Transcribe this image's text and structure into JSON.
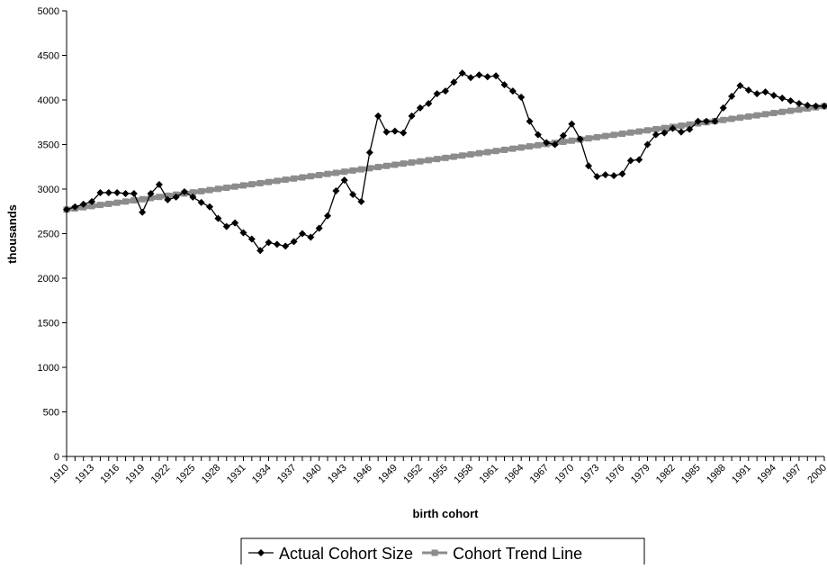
{
  "chart_data": {
    "type": "line",
    "x_label": "birth cohort",
    "y_label": "thousands",
    "categories": [
      "1910",
      null,
      null,
      "1913",
      null,
      null,
      "1916",
      null,
      null,
      "1919",
      null,
      null,
      "1922",
      null,
      null,
      "1925",
      null,
      null,
      "1928",
      null,
      null,
      "1931",
      null,
      null,
      "1934",
      null,
      null,
      "1937",
      null,
      null,
      "1940",
      null,
      null,
      "1943",
      null,
      null,
      "1946",
      null,
      null,
      "1949",
      null,
      null,
      "1952",
      null,
      null,
      "1955",
      null,
      null,
      "1958",
      null,
      null,
      "1961",
      null,
      null,
      "1964",
      null,
      null,
      "1967",
      null,
      null,
      "1970",
      null,
      null,
      "1973",
      null,
      null,
      "1976",
      null,
      null,
      "1979",
      null,
      null,
      "1982",
      null,
      null,
      "1985",
      null,
      null,
      "1988",
      null,
      null,
      "1991",
      null,
      null,
      "1994",
      null,
      null,
      "1997",
      null,
      null,
      "2000"
    ],
    "series": [
      {
        "name": "Actual Cohort Size",
        "color": "#000000",
        "marker": "diamond",
        "values": [
          2770,
          2800,
          2830,
          2860,
          2960,
          2960,
          2960,
          2950,
          2950,
          2740,
          2950,
          3050,
          2880,
          2910,
          2970,
          2910,
          2850,
          2800,
          2670,
          2580,
          2620,
          2510,
          2440,
          2310,
          2400,
          2380,
          2360,
          2410,
          2500,
          2460,
          2560,
          2700,
          2980,
          3100,
          2940,
          2860,
          3410,
          3820,
          3640,
          3650,
          3630,
          3820,
          3910,
          3960,
          4070,
          4100,
          4200,
          4300,
          4250,
          4280,
          4260,
          4270,
          4170,
          4100,
          4030,
          3760,
          3610,
          3520,
          3500,
          3600,
          3730,
          3560,
          3260,
          3140,
          3160,
          3150,
          3170,
          3320,
          3330,
          3500,
          3610,
          3630,
          3680,
          3640,
          3670,
          3760,
          3760,
          3760,
          3910,
          4040,
          4160,
          4110,
          4070,
          4090,
          4050,
          4020,
          3990,
          3960,
          3940,
          3930,
          3930
        ]
      },
      {
        "name": "Cohort Trend Line",
        "color": "#8c8c8c",
        "marker": "square",
        "values": [
          2770,
          2783,
          2796,
          2809,
          2822,
          2834,
          2847,
          2860,
          2873,
          2886,
          2899,
          2912,
          2925,
          2938,
          2950,
          2963,
          2976,
          2989,
          3002,
          3015,
          3028,
          3041,
          3054,
          3066,
          3079,
          3092,
          3105,
          3118,
          3131,
          3144,
          3157,
          3170,
          3182,
          3195,
          3208,
          3221,
          3234,
          3247,
          3260,
          3273,
          3286,
          3298,
          3311,
          3324,
          3337,
          3350,
          3363,
          3376,
          3389,
          3402,
          3414,
          3427,
          3440,
          3453,
          3466,
          3479,
          3492,
          3505,
          3518,
          3530,
          3543,
          3556,
          3569,
          3582,
          3595,
          3608,
          3621,
          3634,
          3646,
          3659,
          3672,
          3685,
          3698,
          3711,
          3724,
          3737,
          3750,
          3762,
          3775,
          3788,
          3801,
          3814,
          3827,
          3840,
          3853,
          3866,
          3878,
          3891,
          3904,
          3917,
          3930
        ]
      }
    ],
    "ylim": [
      0,
      5000
    ],
    "yticks": [
      0,
      500,
      1000,
      1500,
      2000,
      2500,
      3000,
      3500,
      4000,
      4500,
      5000
    ],
    "grid": false,
    "legend": "bottom"
  }
}
